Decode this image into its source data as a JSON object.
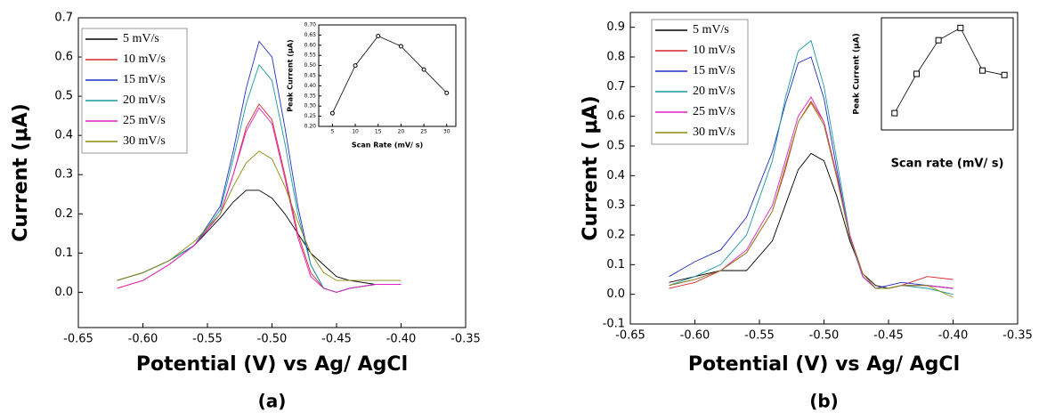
{
  "chart_data": [
    {
      "type": "line",
      "caption": "(a)",
      "xlabel": "Potential (V) vs Ag/ AgCl",
      "ylabel": "Current (μA)",
      "legend": "upper left",
      "xlim": [
        -0.65,
        -0.35
      ],
      "ylim": [
        -0.09,
        0.7
      ],
      "xticks": [
        -0.65,
        {
          "value": -0.6,
          "label": "-0.60"
        },
        -0.55,
        {
          "value": -0.5,
          "label": "-0.50"
        },
        -0.45,
        {
          "value": -0.4,
          "label": "-0.40"
        },
        -0.35
      ],
      "yticks": [
        {
          "value": 0,
          "label": "0.0"
        },
        0.1,
        0.2,
        0.3,
        0.4,
        0.5,
        0.6,
        0.7
      ],
      "x": [
        -0.62,
        -0.6,
        -0.58,
        -0.56,
        -0.54,
        -0.53,
        -0.52,
        -0.51,
        -0.5,
        -0.49,
        -0.48,
        -0.47,
        -0.46,
        -0.45,
        -0.44,
        -0.42,
        -0.4
      ],
      "series": [
        {
          "name": "5 mV/s",
          "color": "#000000",
          "values": [
            0.03,
            0.05,
            0.08,
            0.12,
            0.19,
            0.23,
            0.26,
            0.26,
            0.24,
            0.2,
            0.15,
            0.1,
            0.07,
            0.04,
            0.03,
            0.02,
            0.02
          ]
        },
        {
          "name": "10 mV/s",
          "color": "#d62728",
          "values": [
            0.01,
            0.03,
            0.07,
            0.12,
            0.2,
            0.3,
            0.42,
            0.48,
            0.44,
            0.3,
            0.15,
            0.05,
            0.01,
            0,
            0.01,
            0.02,
            0.02
          ]
        },
        {
          "name": "15 mV/s",
          "color": "#1f2fbf",
          "values": [
            0.03,
            0.05,
            0.08,
            0.12,
            0.22,
            0.36,
            0.52,
            0.64,
            0.6,
            0.42,
            0.22,
            0.07,
            0.01,
            0,
            0.01,
            0.02,
            0.02
          ]
        },
        {
          "name": "20 mV/s",
          "color": "#1a9a9a",
          "values": [
            0.03,
            0.05,
            0.08,
            0.12,
            0.21,
            0.34,
            0.48,
            0.58,
            0.54,
            0.38,
            0.2,
            0.07,
            0.01,
            0,
            0.01,
            0.02,
            0.02
          ]
        },
        {
          "name": "25 mV/s",
          "color": "#e020c0",
          "values": [
            0.01,
            0.03,
            0.07,
            0.12,
            0.2,
            0.3,
            0.41,
            0.47,
            0.43,
            0.29,
            0.14,
            0.04,
            0.01,
            0,
            0.01,
            0.02,
            0.02
          ]
        },
        {
          "name": "30 mV/s",
          "color": "#8a8a10",
          "values": [
            0.03,
            0.05,
            0.08,
            0.13,
            0.2,
            0.27,
            0.33,
            0.36,
            0.34,
            0.27,
            0.18,
            0.1,
            0.05,
            0.03,
            0.03,
            0.03,
            0.03
          ]
        }
      ],
      "inset": {
        "type": "line",
        "marker": "circle",
        "color": "#000000",
        "xlabel": "Scan Rate (mV/ s)",
        "ylabel": "Peak Current (μA)",
        "xlim": [
          2,
          32
        ],
        "ylim": [
          0.2,
          0.7
        ],
        "xticks": [
          5,
          10,
          15,
          20,
          25,
          30
        ],
        "yticks": [
          {
            "value": 0.2,
            "label": "0.20"
          },
          0.25,
          {
            "value": 0.3,
            "label": "0.30"
          },
          0.35,
          {
            "value": 0.4,
            "label": "0.40"
          },
          0.45,
          {
            "value": 0.5,
            "label": "0.50"
          },
          0.55,
          {
            "value": 0.6,
            "label": "0.60"
          },
          0.65,
          {
            "value": 0.7,
            "label": "0.70"
          }
        ],
        "x": [
          5,
          10,
          15,
          20,
          25,
          30
        ],
        "values": [
          0.265,
          0.5,
          0.645,
          0.595,
          0.48,
          0.365
        ]
      }
    },
    {
      "type": "line",
      "caption": "(b)",
      "xlabel": "Potential (V) vs Ag/ AgCl",
      "ylabel": "Current ( μA)",
      "legend": "upper left",
      "xlim": [
        -0.65,
        -0.35
      ],
      "ylim": [
        -0.1,
        0.95
      ],
      "xticks": [
        -0.65,
        {
          "value": -0.6,
          "label": "-0.60"
        },
        -0.55,
        {
          "value": -0.5,
          "label": "-0.50"
        },
        -0.45,
        {
          "value": -0.4,
          "label": "-0.40"
        },
        -0.35
      ],
      "yticks": [
        -0.1,
        {
          "value": 0,
          "label": "0.0"
        },
        0.1,
        0.2,
        0.3,
        0.4,
        0.5,
        0.6,
        0.7,
        0.8,
        0.9
      ],
      "x": [
        -0.62,
        -0.6,
        -0.58,
        -0.56,
        -0.54,
        -0.53,
        -0.52,
        -0.51,
        -0.5,
        -0.49,
        -0.48,
        -0.47,
        -0.46,
        -0.45,
        -0.44,
        -0.42,
        -0.4
      ],
      "series": [
        {
          "name": "5 mV/s",
          "color": "#000000",
          "values": [
            0.04,
            0.06,
            0.08,
            0.08,
            0.18,
            0.3,
            0.42,
            0.475,
            0.45,
            0.33,
            0.18,
            0.07,
            0.03,
            0.02,
            0.03,
            0.03,
            0.02
          ]
        },
        {
          "name": "10 mV/s",
          "color": "#d62728",
          "values": [
            0.02,
            0.04,
            0.08,
            0.14,
            0.28,
            0.42,
            0.58,
            0.65,
            0.58,
            0.4,
            0.2,
            0.07,
            0.02,
            0.02,
            0.03,
            0.06,
            0.05
          ]
        },
        {
          "name": "15 mV/s",
          "color": "#1f2fbf",
          "values": [
            0.06,
            0.11,
            0.15,
            0.26,
            0.48,
            0.64,
            0.78,
            0.8,
            0.66,
            0.42,
            0.19,
            0.06,
            0.02,
            0.03,
            0.04,
            0.03,
            0.02
          ]
        },
        {
          "name": "20 mV/s",
          "color": "#1a9a9a",
          "values": [
            0.03,
            0.06,
            0.1,
            0.2,
            0.45,
            0.66,
            0.82,
            0.855,
            0.7,
            0.45,
            0.2,
            0.06,
            0.02,
            0.02,
            0.03,
            0.02,
            0
          ]
        },
        {
          "name": "25 mV/s",
          "color": "#e020c0",
          "values": [
            0.03,
            0.05,
            0.08,
            0.15,
            0.3,
            0.45,
            0.6,
            0.665,
            0.58,
            0.4,
            0.2,
            0.06,
            0.02,
            0.02,
            0.03,
            0.03,
            0.02
          ]
        },
        {
          "name": "30 mV/s",
          "color": "#8a8a10",
          "values": [
            0.03,
            0.05,
            0.08,
            0.14,
            0.28,
            0.43,
            0.58,
            0.645,
            0.57,
            0.39,
            0.19,
            0.07,
            0.02,
            0.02,
            0.03,
            0.03,
            -0.01
          ]
        }
      ],
      "inset": {
        "type": "line",
        "marker": "square",
        "color": "#000000",
        "xlabel": "Scan rate (mV/ s)",
        "ylabel": "Peak Current (μA)",
        "xlim": [
          2,
          32
        ],
        "ylim": [
          0.4,
          0.9
        ],
        "x": [
          5,
          10,
          15,
          20,
          25,
          30
        ],
        "values": [
          0.475,
          0.65,
          0.8,
          0.855,
          0.665,
          0.645
        ]
      }
    }
  ]
}
